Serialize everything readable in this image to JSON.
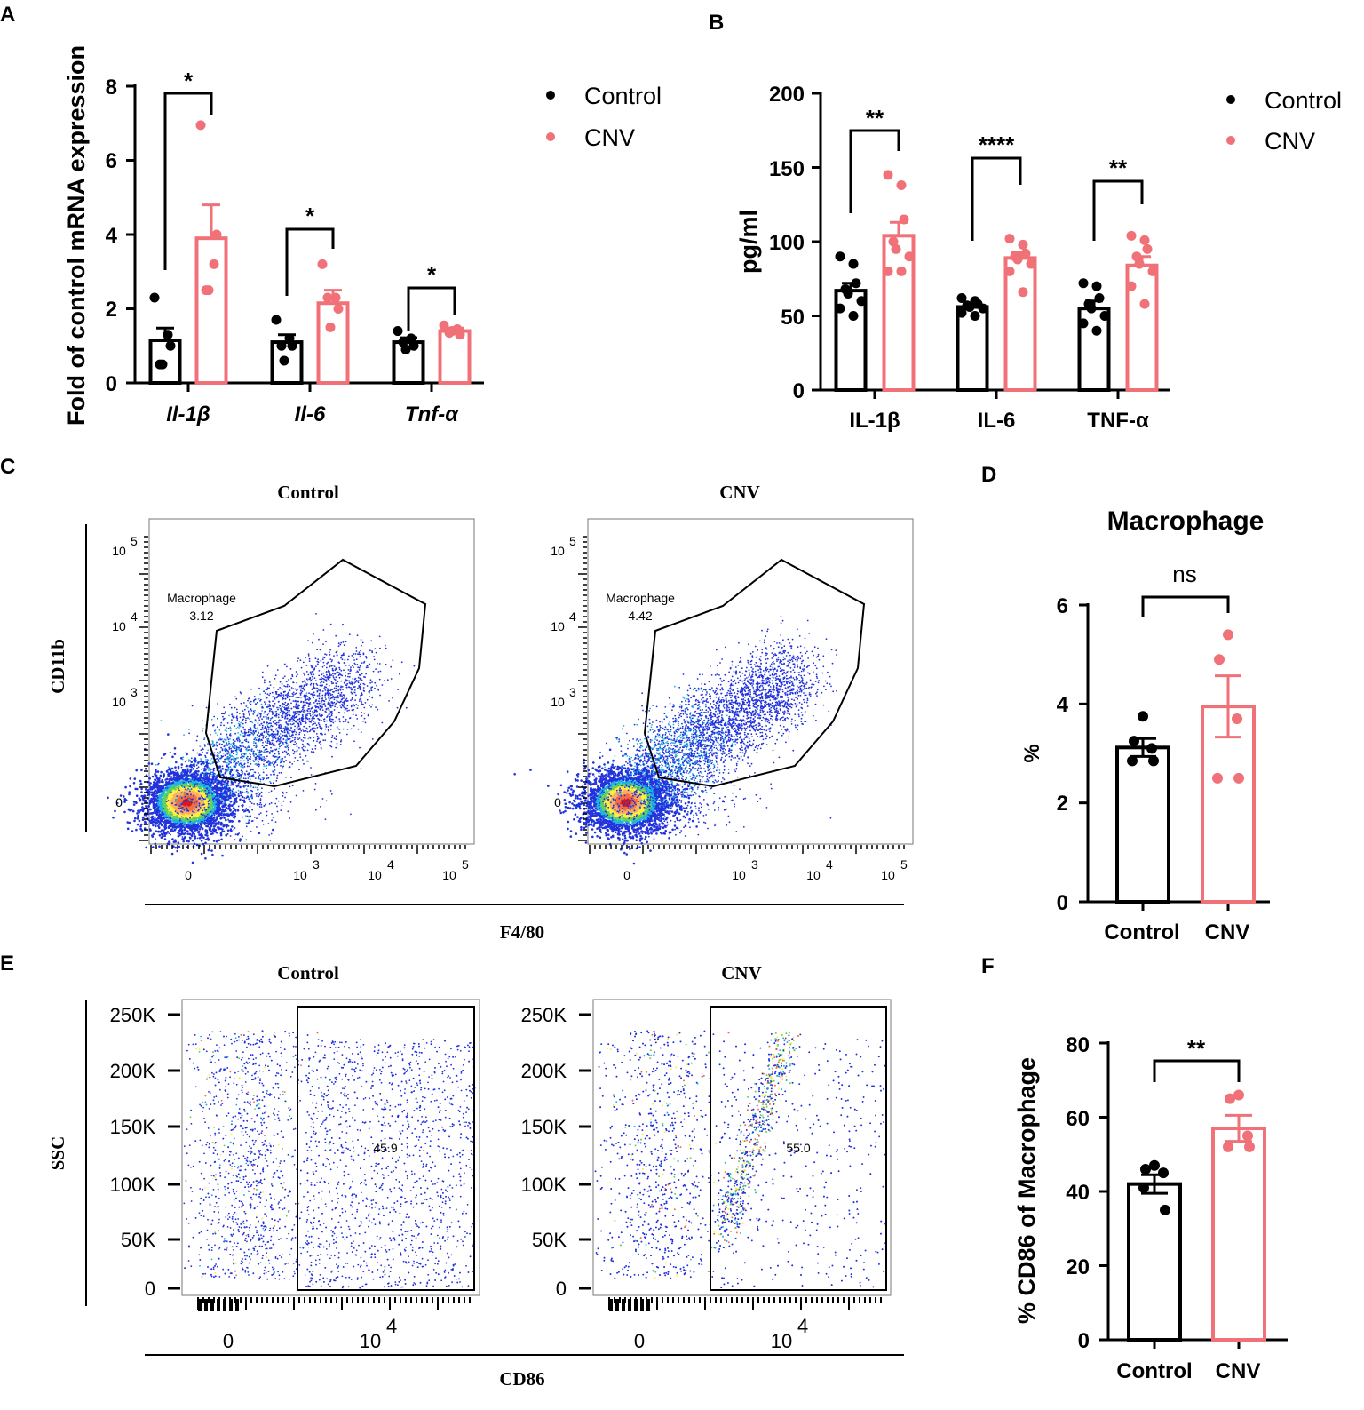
{
  "colors": {
    "control": "#000000",
    "cnv": "#f07178"
  },
  "panel_labels": {
    "A": "A",
    "B": "B",
    "C": "C",
    "D": "D",
    "E": "E",
    "F": "F"
  },
  "chart_data": [
    {
      "id": "A",
      "type": "bar",
      "ylabel": "Fold of control mRNA expression",
      "ylim": [
        0,
        8
      ],
      "yticks": [
        "0",
        "2",
        "4",
        "6",
        "8"
      ],
      "categories": [
        "Il-1β",
        "Il-6",
        "Tnf-α"
      ],
      "legend": [
        "Control",
        "CNV"
      ],
      "series": [
        {
          "name": "Control",
          "values": [
            1.15,
            1.1,
            1.1
          ],
          "sem": [
            0.33,
            0.2,
            0.12
          ],
          "points": [
            [
              2.3,
              1.3,
              1.0,
              0.5,
              0.5
            ],
            [
              1.7,
              1.2,
              1.0,
              1.0,
              0.6
            ],
            [
              1.4,
              1.2,
              1.0,
              1.1,
              0.9
            ]
          ]
        },
        {
          "name": "CNV",
          "values": [
            3.9,
            2.15,
            1.4
          ],
          "sem": [
            0.9,
            0.35,
            0.08
          ],
          "points": [
            [
              6.95,
              3.2,
              4.0,
              2.5,
              2.5
            ],
            [
              3.2,
              2.3,
              2.0,
              2.3,
              1.5
            ],
            [
              1.55,
              1.45,
              1.3,
              1.35,
              1.4
            ]
          ]
        }
      ],
      "significance": [
        "*",
        "*",
        "*"
      ]
    },
    {
      "id": "B",
      "type": "bar",
      "ylabel": "pg/ml",
      "ylim": [
        0,
        200
      ],
      "yticks": [
        "0",
        "50",
        "100",
        "150",
        "200"
      ],
      "categories": [
        "IL-1β",
        "IL-6",
        "TNF-α"
      ],
      "legend": [
        "Control",
        "CNV"
      ],
      "series": [
        {
          "name": "Control",
          "values": [
            67,
            56,
            55
          ],
          "sem": [
            5,
            2,
            5
          ],
          "points": [
            [
              90,
              85,
              72,
              68,
              65,
              60,
              55,
              50
            ],
            [
              62,
              60,
              58,
              57,
              56,
              55,
              52,
              50
            ],
            [
              72,
              70,
              62,
              58,
              55,
              50,
              45,
              40
            ]
          ]
        },
        {
          "name": "CNV",
          "values": [
            104,
            89,
            84
          ],
          "sem": [
            9,
            4,
            6
          ],
          "points": [
            [
              145,
              138,
              115,
              100,
              95,
              90,
              80,
              80
            ],
            [
              102,
              98,
              92,
              90,
              88,
              85,
              80,
              66
            ],
            [
              104,
              101,
              95,
              90,
              85,
              80,
              70,
              58
            ]
          ]
        }
      ],
      "significance": [
        "**",
        "****",
        "**"
      ]
    },
    {
      "id": "C",
      "type": "scatter",
      "panels": [
        {
          "title": "Control",
          "gate_label": "Macrophage",
          "gate_value": "3.12"
        },
        {
          "title": "CNV",
          "gate_label": "Macrophage",
          "gate_value": "4.42"
        }
      ],
      "xlabel": "F4/80",
      "ylabel": "CD11b",
      "xticks": [
        "0",
        "10",
        "10",
        "10"
      ],
      "xexp": [
        "",
        "3",
        "4",
        "5"
      ],
      "yticks": [
        "0",
        "10",
        "10",
        "10"
      ],
      "yexp": [
        "",
        "3",
        "4",
        "5"
      ]
    },
    {
      "id": "D",
      "type": "bar",
      "title": "Macrophage",
      "ylabel": "%",
      "ylim": [
        0,
        6
      ],
      "yticks": [
        "0",
        "2",
        "4",
        "6"
      ],
      "categories": [
        "Control",
        "CNV"
      ],
      "values": [
        3.12,
        3.95
      ],
      "sem": [
        0.18,
        0.62
      ],
      "points": [
        [
          3.75,
          3.25,
          3.1,
          2.85,
          2.85
        ],
        [
          5.4,
          4.9,
          3.7,
          2.5,
          2.5
        ]
      ],
      "significance": "ns"
    },
    {
      "id": "E",
      "type": "scatter",
      "panels": [
        {
          "title": "Control",
          "gate_value": "45.9"
        },
        {
          "title": "CNV",
          "gate_value": "55.0"
        }
      ],
      "xlabel": "CD86",
      "ylabel": "SSC",
      "xticks": [
        "0",
        "10"
      ],
      "xexp": [
        "",
        "4"
      ],
      "yticks": [
        "0",
        "50K",
        "100K",
        "150K",
        "200K",
        "250K"
      ]
    },
    {
      "id": "F",
      "type": "bar",
      "ylabel": "% CD86 of Macrophage",
      "ylim": [
        0,
        80
      ],
      "yticks": [
        "0",
        "20",
        "40",
        "60",
        "80"
      ],
      "categories": [
        "Control",
        "CNV"
      ],
      "values": [
        42,
        57
      ],
      "sem": [
        2.5,
        3.5
      ],
      "points": [
        [
          47,
          46,
          45,
          41,
          35
        ],
        [
          66,
          65,
          55,
          52,
          52
        ]
      ],
      "significance": "**"
    }
  ]
}
